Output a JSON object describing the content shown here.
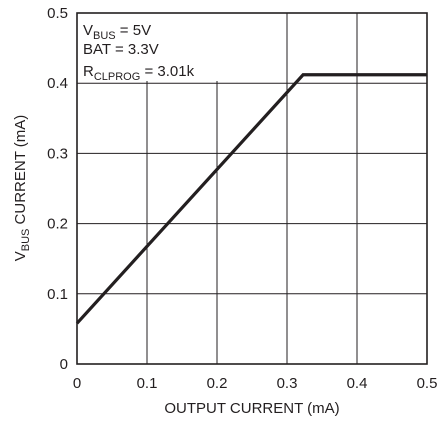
{
  "chart_data": {
    "type": "line",
    "xlabel": "OUTPUT CURRENT (mA)",
    "ylabel": {
      "main": "V",
      "sub": "BUS",
      "rest": " CURRENT (mA)"
    },
    "xlim": [
      0,
      0.5
    ],
    "ylim": [
      0,
      0.5
    ],
    "x_ticks": [
      "0",
      "0.1",
      "0.2",
      "0.3",
      "0.4",
      "0.5"
    ],
    "y_ticks": [
      "0",
      "0.1",
      "0.2",
      "0.3",
      "0.4",
      "0.5"
    ],
    "grid": true,
    "series": [
      {
        "x": [
          0,
          0.323,
          0.5
        ],
        "y": [
          0.058,
          0.412,
          0.412
        ]
      }
    ],
    "annotations": [
      {
        "main": "V",
        "sub": "BUS",
        "rest": " = 5V"
      },
      {
        "main": "BAT = 3.3V",
        "sub": "",
        "rest": ""
      },
      {
        "main": "R",
        "sub": "CLPROG",
        "rest": " = 3.01k"
      }
    ]
  }
}
